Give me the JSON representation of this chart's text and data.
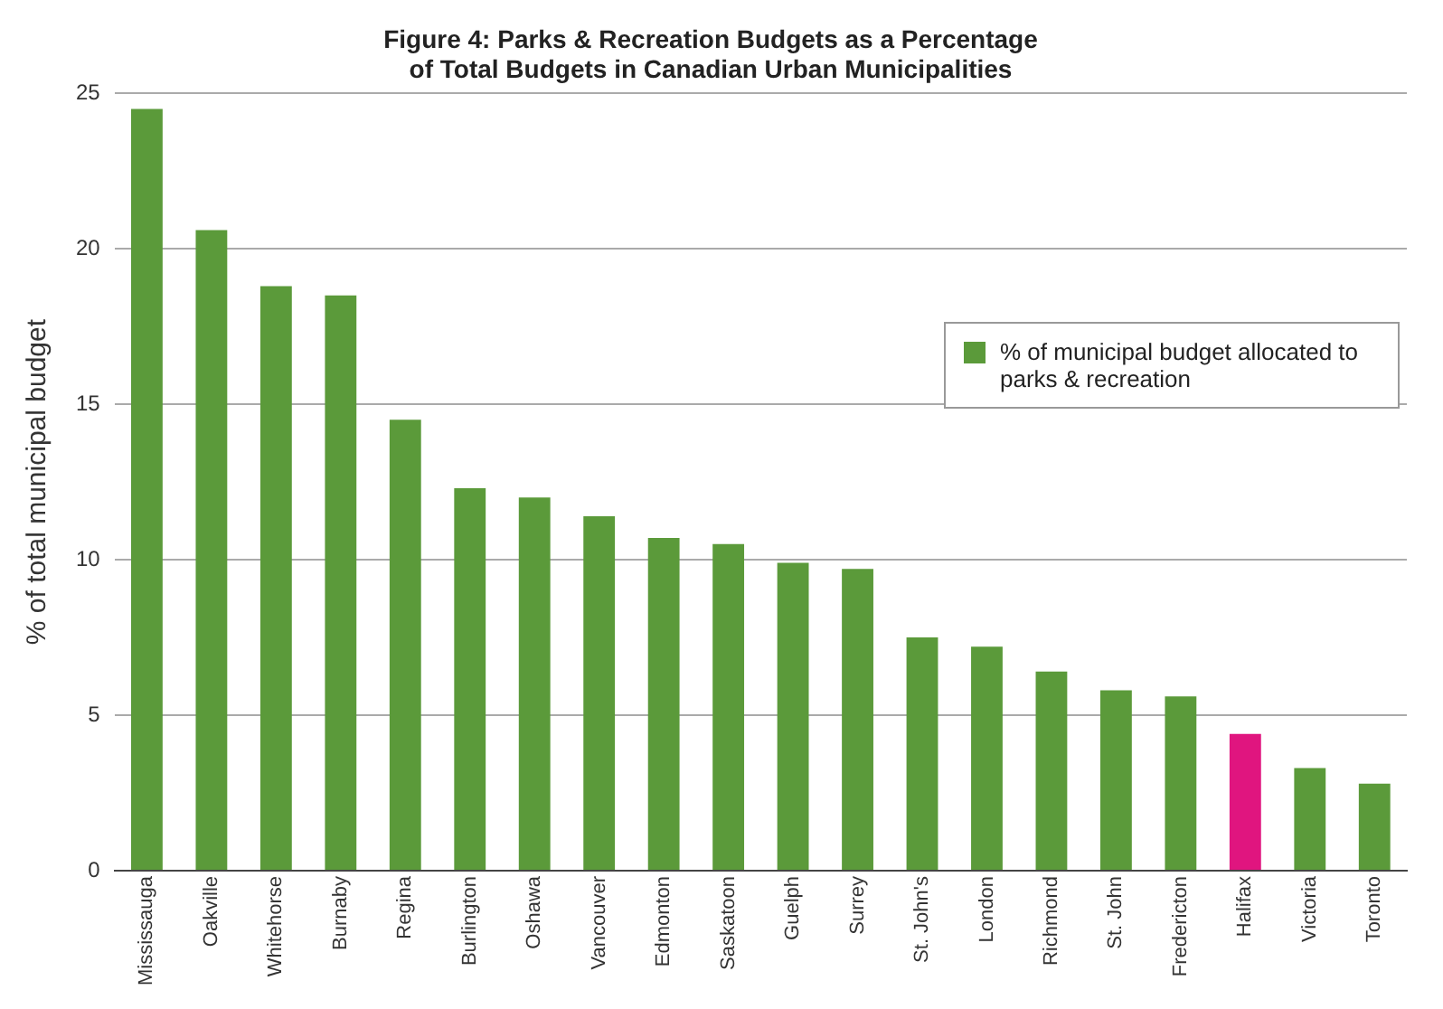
{
  "chart_data": {
    "type": "bar",
    "title": "Figure 4: Parks & Recreation Budgets as a Percentage\nof Total Budgets in Canadian Urban Municipalities",
    "ylabel": "% of total municipal budget",
    "categories": [
      "Mississauga",
      "Oakville",
      "Whitehorse",
      "Burnaby",
      "Regina",
      "Burlington",
      "Oshawa",
      "Vancouver",
      "Edmonton",
      "Saskatoon",
      "Guelph",
      "Surrey",
      "St. John's",
      "London",
      "Richmond",
      "St. John",
      "Fredericton",
      "Halifax",
      "Victoria",
      "Toronto"
    ],
    "series": [
      {
        "name": "% of municipal budget allocated to parks & recreation",
        "color": "#5b9a3a",
        "colors": [
          "#5b9a3a",
          "#5b9a3a",
          "#5b9a3a",
          "#5b9a3a",
          "#5b9a3a",
          "#5b9a3a",
          "#5b9a3a",
          "#5b9a3a",
          "#5b9a3a",
          "#5b9a3a",
          "#5b9a3a",
          "#5b9a3a",
          "#5b9a3a",
          "#5b9a3a",
          "#5b9a3a",
          "#5b9a3a",
          "#5b9a3a",
          "#e0157f",
          "#5b9a3a",
          "#5b9a3a"
        ],
        "values": [
          24.5,
          20.6,
          18.8,
          18.5,
          14.5,
          12.3,
          12.0,
          11.4,
          10.7,
          10.5,
          9.9,
          9.7,
          7.5,
          7.2,
          6.4,
          5.8,
          5.6,
          4.4,
          3.3,
          2.8
        ]
      }
    ],
    "ylim": [
      0,
      25
    ],
    "yticks": [
      0,
      5,
      10,
      15,
      20,
      25
    ],
    "grid": "y",
    "legend": "right"
  }
}
